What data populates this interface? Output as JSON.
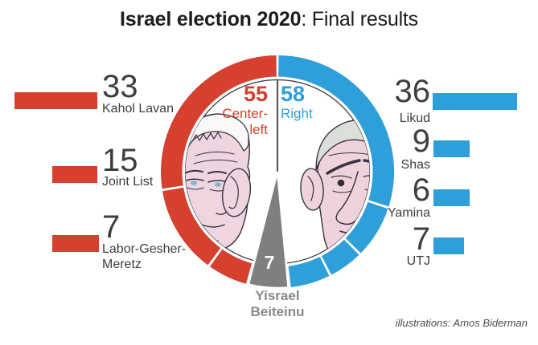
{
  "title": {
    "bold": "Israel election 2020",
    "rest": ": Final results"
  },
  "caption": "illustrations: Amos Biderman",
  "colors": {
    "center_left_red": "#d5402f",
    "right_blue": "#2e9fd9",
    "neutral_gray": "#7f7f82",
    "number_text": "#3e3e40",
    "wedge_label_gray": "#8a8a8d"
  },
  "center_labels": {
    "left_value": "55",
    "left_name": "Center-left",
    "right_value": "58",
    "right_name": "Right",
    "wedge_value": "7",
    "wedge_name": "Yisrael Beiteinu"
  },
  "left_parties": [
    {
      "value": "33",
      "label": "Kahol Lavan"
    },
    {
      "value": "15",
      "label": "Joint List"
    },
    {
      "value": "7",
      "label": "Labor-Gesher-Meretz"
    }
  ],
  "right_parties": [
    {
      "value": "36",
      "label": "Likud"
    },
    {
      "value": "9",
      "label": "Shas"
    },
    {
      "value": "6",
      "label": "Yamina"
    },
    {
      "value": "7",
      "label": "UTJ"
    }
  ],
  "chart_data": {
    "type": "pie",
    "title": "Israel election 2020: Final results",
    "total_seats": 120,
    "degrees_per_seat": 3,
    "legend_position": "flanking-bars",
    "blocs": [
      {
        "name": "Center-left",
        "seats": 55,
        "color": "#d5402f"
      },
      {
        "name": "Right",
        "seats": 58,
        "color": "#2e9fd9"
      },
      {
        "name": "Yisrael Beiteinu",
        "seats": 7,
        "color": "#7f7f82"
      }
    ],
    "segments_clockwise_from_top": [
      {
        "party": "Likud",
        "seats": 36,
        "bloc": "Right"
      },
      {
        "party": "Shas",
        "seats": 9,
        "bloc": "Right"
      },
      {
        "party": "Yamina",
        "seats": 6,
        "bloc": "Right"
      },
      {
        "party": "UTJ",
        "seats": 7,
        "bloc": "Right"
      },
      {
        "party": "Yisrael Beiteinu",
        "seats": 7,
        "bloc": "Yisrael Beiteinu",
        "style": "full-wedge"
      },
      {
        "party": "Labor-Gesher-Meretz",
        "seats": 7,
        "bloc": "Center-left"
      },
      {
        "party": "Joint List",
        "seats": 15,
        "bloc": "Center-left"
      },
      {
        "party": "Kahol Lavan",
        "seats": 33,
        "bloc": "Center-left"
      }
    ]
  }
}
